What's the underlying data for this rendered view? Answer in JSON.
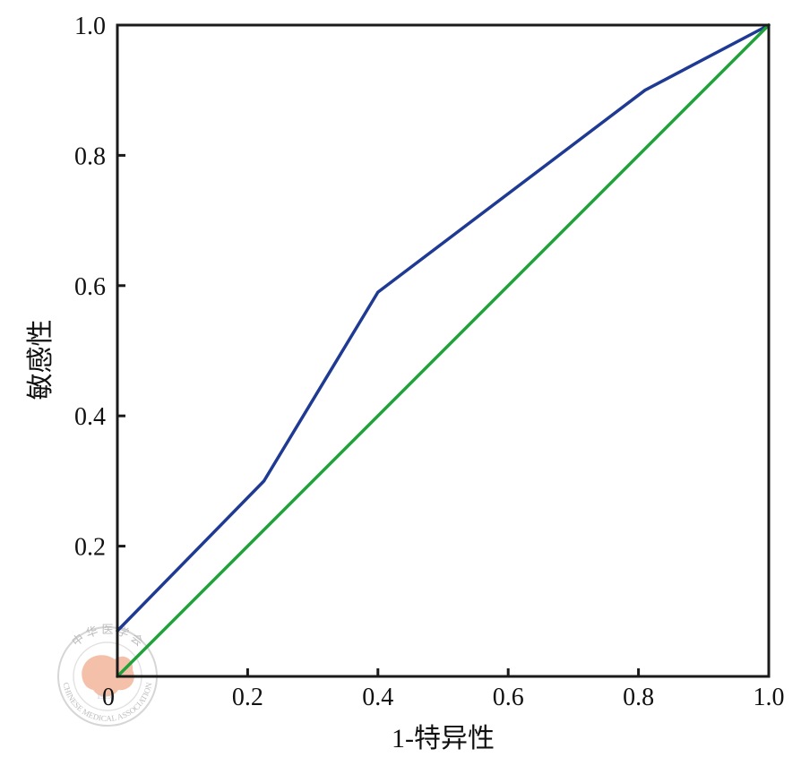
{
  "chart_data": {
    "type": "line",
    "title": "",
    "xlabel": "1-特异性",
    "ylabel": "敏感性",
    "xlim": [
      0,
      1
    ],
    "ylim": [
      0,
      1
    ],
    "xticks": [
      0,
      0.2,
      0.4,
      0.6,
      0.8,
      1.0
    ],
    "yticks": [
      0,
      0.2,
      0.4,
      0.6,
      0.8,
      1.0
    ],
    "xtick_labels": [
      "0",
      "0.2",
      "0.4",
      "0.6",
      "0.8",
      "1.0"
    ],
    "ytick_labels": [
      "",
      "0.2",
      "0.4",
      "0.6",
      "0.8",
      "1.0"
    ],
    "grid": false,
    "legend": "none",
    "series": [
      {
        "color": "#1f3a93",
        "x": [
          0,
          0.225,
          0.4,
          0.81,
          1.0
        ],
        "y": [
          0.07,
          0.3,
          0.59,
          0.9,
          1.0
        ]
      },
      {
        "color": "#1fa23a",
        "x": [
          0,
          1.0
        ],
        "y": [
          0,
          1.0
        ]
      }
    ]
  },
  "watermark": {
    "text_top": "中 华 医 学 会",
    "text_bottom": "CHINESE MEDICAL ASSOCIATION",
    "year": "1915",
    "color": "#f3b9a0"
  }
}
